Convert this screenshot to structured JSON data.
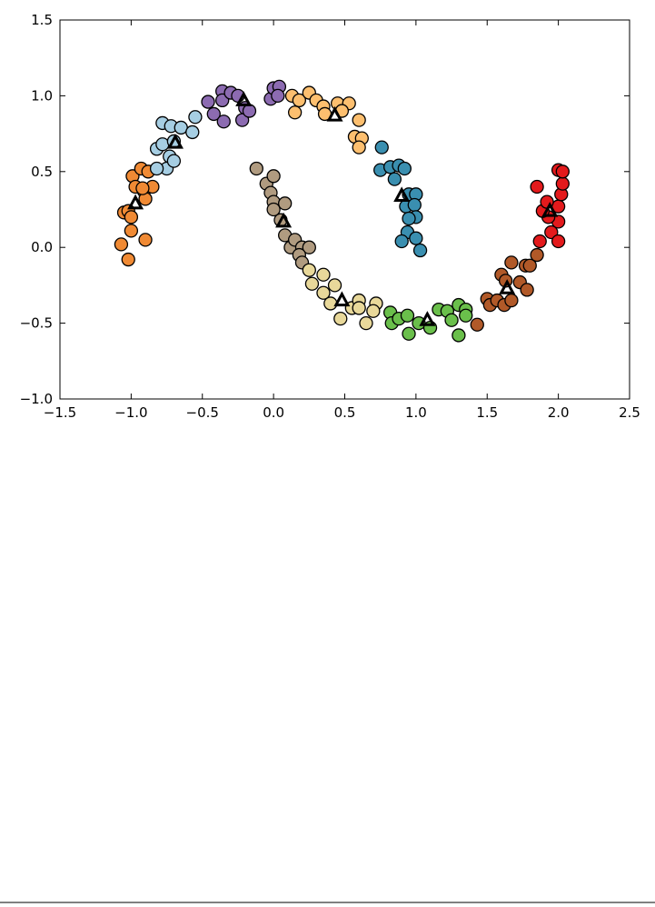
{
  "chart_data": {
    "type": "scatter",
    "xlim": [
      -1.5,
      2.5
    ],
    "ylim": [
      -1.0,
      1.5
    ],
    "xticks": [
      {
        "value": -1.5,
        "label": "−1.5"
      },
      {
        "value": -1.0,
        "label": "−1.0"
      },
      {
        "value": -0.5,
        "label": "−0.5"
      },
      {
        "value": 0,
        "label": "0.0"
      },
      {
        "value": 0.5,
        "label": "0.5"
      },
      {
        "value": 1.0,
        "label": "1.0"
      },
      {
        "value": 1.5,
        "label": "1.5"
      },
      {
        "value": 2.0,
        "label": "2.0"
      },
      {
        "value": 2.5,
        "label": "2.5"
      }
    ],
    "yticks": [
      {
        "value": -1.0,
        "label": "−1.0"
      },
      {
        "value": -0.5,
        "label": "−0.5"
      },
      {
        "value": 0,
        "label": "0.0"
      },
      {
        "value": 0.5,
        "label": "0.5"
      },
      {
        "value": 1.0,
        "label": "1.0"
      },
      {
        "value": 1.5,
        "label": "1.5"
      }
    ],
    "series": [
      {
        "color": "#f08a34",
        "marker": "circle",
        "x": [
          -1.05,
          -1.02,
          -1.0,
          -1.0,
          -1.07,
          -1.02,
          -0.9,
          -0.99,
          -0.93,
          -0.88,
          -0.97,
          -0.91,
          -0.85,
          -0.9,
          -0.92
        ],
        "y": [
          0.23,
          0.24,
          0.2,
          0.11,
          0.02,
          -0.08,
          0.05,
          0.47,
          0.52,
          0.5,
          0.4,
          0.37,
          0.4,
          0.32,
          0.39
        ]
      },
      {
        "color": "#a6cee3",
        "marker": "circle",
        "x": [
          -0.78,
          -0.72,
          -0.65,
          -0.57,
          -0.55,
          -0.82,
          -0.78,
          -0.7,
          -0.73,
          -0.75,
          -0.82,
          -0.7
        ],
        "y": [
          0.82,
          0.8,
          0.79,
          0.76,
          0.86,
          0.65,
          0.68,
          0.7,
          0.6,
          0.52,
          0.52,
          0.57
        ]
      },
      {
        "color": "#8c6bb1",
        "marker": "circle",
        "x": [
          -0.46,
          -0.42,
          -0.36,
          -0.36,
          -0.3,
          -0.25,
          -0.2,
          -0.22,
          -0.35,
          -0.17,
          -0.02,
          0.0,
          0.04,
          0.03
        ],
        "y": [
          0.96,
          0.88,
          1.03,
          0.97,
          1.02,
          1.0,
          0.92,
          0.84,
          0.83,
          0.9,
          0.98,
          1.05,
          1.06,
          1.0
        ]
      },
      {
        "color": "#fdbf6f",
        "marker": "circle",
        "x": [
          0.13,
          0.18,
          0.25,
          0.3,
          0.35,
          0.45,
          0.53,
          0.6,
          0.57,
          0.62,
          0.6,
          0.15,
          0.36,
          0.48
        ],
        "y": [
          1.0,
          0.97,
          1.02,
          0.97,
          0.93,
          0.95,
          0.95,
          0.84,
          0.73,
          0.72,
          0.66,
          0.89,
          0.88,
          0.9
        ]
      },
      {
        "color": "#3a8fb0",
        "marker": "circle",
        "x": [
          0.76,
          0.75,
          0.82,
          0.88,
          0.92,
          0.85,
          0.95,
          0.93,
          1.0,
          0.99,
          1.0,
          0.95,
          0.94,
          0.9,
          1.0,
          1.03
        ],
        "y": [
          0.66,
          0.51,
          0.53,
          0.54,
          0.52,
          0.45,
          0.35,
          0.27,
          0.35,
          0.28,
          0.2,
          0.19,
          0.1,
          0.04,
          0.06,
          -0.02
        ]
      },
      {
        "color": "#b09b80",
        "marker": "circle",
        "x": [
          -0.12,
          -0.05,
          0.0,
          -0.02,
          0.0,
          0.08,
          0.0,
          0.05,
          0.08,
          0.12,
          0.15,
          0.2,
          0.25,
          0.18,
          0.2
        ],
        "y": [
          0.52,
          0.42,
          0.47,
          0.36,
          0.3,
          0.29,
          0.25,
          0.18,
          0.08,
          0.0,
          0.05,
          0.0,
          0.0,
          -0.05,
          -0.1
        ]
      },
      {
        "color": "#e8d89a",
        "marker": "circle",
        "x": [
          0.25,
          0.27,
          0.35,
          0.35,
          0.43,
          0.4,
          0.47,
          0.55,
          0.6,
          0.65,
          0.6,
          0.72,
          0.7
        ],
        "y": [
          -0.15,
          -0.24,
          -0.18,
          -0.3,
          -0.25,
          -0.37,
          -0.47,
          -0.4,
          -0.35,
          -0.5,
          -0.4,
          -0.37,
          -0.42
        ]
      },
      {
        "color": "#6abf4b",
        "marker": "circle",
        "x": [
          0.82,
          0.83,
          0.88,
          0.94,
          0.95,
          1.02,
          1.1,
          1.16,
          1.22,
          1.25,
          1.3,
          1.35,
          1.35,
          1.3
        ],
        "y": [
          -0.43,
          -0.5,
          -0.47,
          -0.45,
          -0.57,
          -0.5,
          -0.53,
          -0.41,
          -0.42,
          -0.48,
          -0.38,
          -0.41,
          -0.45,
          -0.58
        ]
      },
      {
        "color": "#b15928",
        "marker": "circle",
        "x": [
          1.43,
          1.5,
          1.52,
          1.57,
          1.62,
          1.67,
          1.6,
          1.63,
          1.67,
          1.73,
          1.77,
          1.78,
          1.8,
          1.85
        ],
        "y": [
          -0.51,
          -0.34,
          -0.38,
          -0.35,
          -0.38,
          -0.35,
          -0.18,
          -0.22,
          -0.1,
          -0.23,
          -0.12,
          -0.28,
          -0.12,
          -0.05
        ]
      },
      {
        "color": "#e31a1c",
        "marker": "circle",
        "x": [
          1.87,
          1.95,
          2.0,
          2.0,
          1.93,
          1.89,
          2.0,
          2.02,
          2.03,
          2.0,
          2.03,
          1.85,
          1.92
        ],
        "y": [
          0.04,
          0.1,
          0.04,
          0.17,
          0.2,
          0.24,
          0.27,
          0.35,
          0.42,
          0.51,
          0.5,
          0.4,
          0.3
        ]
      },
      {
        "color": "#000000",
        "marker": "triangle",
        "x": [
          -0.97,
          -0.69,
          -0.21,
          0.43,
          0.9,
          0.07,
          0.48,
          1.08,
          1.64,
          1.94
        ],
        "y": [
          0.29,
          0.69,
          0.97,
          0.87,
          0.34,
          0.17,
          -0.35,
          -0.48,
          -0.27,
          0.24
        ]
      }
    ]
  }
}
